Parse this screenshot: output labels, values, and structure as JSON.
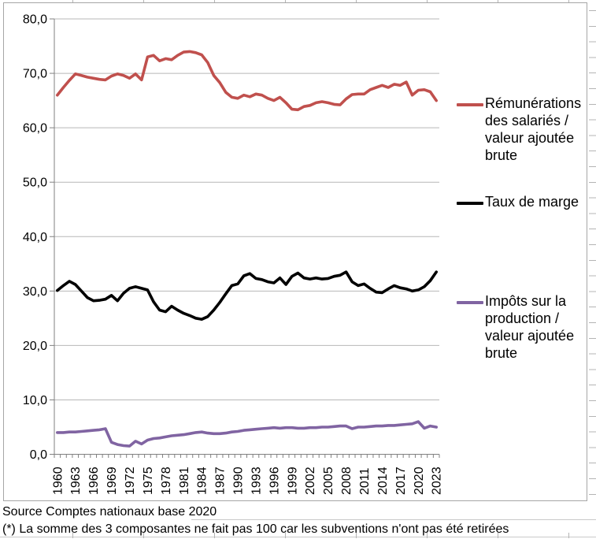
{
  "sheet": {
    "footer_rows": [
      {
        "text": "Source Comptes nationaux base 2020"
      },
      {
        "text": "(*) La somme des 3 composantes ne fait pas 100 car les subventions n'ont pas été retirées"
      }
    ]
  },
  "colors": {
    "gridline": "#b7b7b7",
    "axis": "#808080",
    "chart_border": "#a6a6a6",
    "cell_line": "#c9c9c9"
  },
  "chart_data": {
    "type": "line",
    "title": "",
    "x_start": 1960,
    "x_end": 2023,
    "x_tick_labels": [
      "1960",
      "1963",
      "1966",
      "1969",
      "1972",
      "1975",
      "1978",
      "1981",
      "1984",
      "1987",
      "1990",
      "1993",
      "1996",
      "1999",
      "2002",
      "2005",
      "2008",
      "2011",
      "2014",
      "2017",
      "2020",
      "2023"
    ],
    "y_tick_labels": [
      "80,0",
      "70,0",
      "60,0",
      "50,0",
      "40,0",
      "30,0",
      "20,0",
      "10,0",
      "0,0"
    ],
    "ylim": [
      0,
      80
    ],
    "grid": "horizontal",
    "legend_position": "right",
    "decimal_separator": ",",
    "series": [
      {
        "name": "Rémunérations des salariés / valeur ajoutée brute",
        "color": "#c0504d",
        "values": [
          66.0,
          67.4,
          68.7,
          69.9,
          69.6,
          69.3,
          69.1,
          68.9,
          68.8,
          69.5,
          69.9,
          69.6,
          69.1,
          69.9,
          68.8,
          73.0,
          73.3,
          72.3,
          72.7,
          72.5,
          73.3,
          73.9,
          74.0,
          73.8,
          73.4,
          72.0,
          69.6,
          68.3,
          66.5,
          65.6,
          65.4,
          66.0,
          65.7,
          66.2,
          66.0,
          65.4,
          65.0,
          65.6,
          64.6,
          63.4,
          63.3,
          63.9,
          64.1,
          64.6,
          64.8,
          64.6,
          64.3,
          64.2,
          65.3,
          66.1,
          66.2,
          66.2,
          67.0,
          67.4,
          67.8,
          67.4,
          68.0,
          67.8,
          68.4,
          66.0,
          66.9,
          67.0,
          66.6,
          65.0
        ]
      },
      {
        "name": "Taux de marge",
        "color": "#000000",
        "values": [
          30.1,
          31.0,
          31.8,
          31.2,
          30.0,
          28.8,
          28.2,
          28.3,
          28.5,
          29.2,
          28.2,
          29.6,
          30.5,
          30.8,
          30.5,
          30.2,
          28.0,
          26.5,
          26.2,
          27.2,
          26.5,
          25.9,
          25.5,
          25.0,
          24.8,
          25.3,
          26.5,
          27.9,
          29.5,
          31.0,
          31.3,
          32.8,
          33.2,
          32.3,
          32.1,
          31.7,
          31.5,
          32.4,
          31.2,
          32.7,
          33.3,
          32.4,
          32.2,
          32.4,
          32.2,
          32.3,
          32.7,
          32.9,
          33.5,
          31.7,
          31.0,
          31.3,
          30.5,
          29.8,
          29.7,
          30.4,
          31.0,
          30.6,
          30.4,
          30.0,
          30.2,
          30.8,
          31.9,
          33.5
        ]
      },
      {
        "name": "Impôts sur la production / valeur ajoutée brute",
        "color": "#8064a2",
        "values": [
          4.0,
          4.0,
          4.1,
          4.1,
          4.2,
          4.3,
          4.4,
          4.5,
          4.7,
          2.2,
          1.8,
          1.6,
          1.5,
          2.4,
          1.9,
          2.6,
          2.9,
          3.0,
          3.2,
          3.4,
          3.5,
          3.6,
          3.8,
          4.0,
          4.1,
          3.9,
          3.8,
          3.8,
          3.9,
          4.1,
          4.2,
          4.4,
          4.5,
          4.6,
          4.7,
          4.8,
          4.9,
          4.8,
          4.9,
          4.9,
          4.8,
          4.8,
          4.9,
          4.9,
          5.0,
          5.0,
          5.1,
          5.2,
          5.2,
          4.7,
          5.0,
          5.0,
          5.1,
          5.2,
          5.2,
          5.3,
          5.3,
          5.4,
          5.5,
          5.6,
          6.0,
          4.8,
          5.2,
          5.0
        ]
      }
    ]
  }
}
